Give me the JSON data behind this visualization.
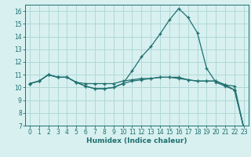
{
  "xlabel": "Humidex (Indice chaleur)",
  "x": [
    0,
    1,
    2,
    3,
    4,
    5,
    6,
    7,
    8,
    9,
    10,
    11,
    12,
    13,
    14,
    15,
    16,
    17,
    18,
    19,
    20,
    21,
    22,
    23
  ],
  "line1": [
    10.3,
    10.5,
    11.0,
    10.8,
    10.8,
    10.4,
    10.1,
    9.9,
    9.9,
    10.0,
    10.3,
    11.3,
    12.4,
    13.2,
    14.2,
    15.3,
    16.2,
    15.5,
    14.3,
    11.5,
    10.4,
    10.1,
    9.8,
    6.8
  ],
  "line2": [
    10.3,
    10.5,
    11.0,
    10.8,
    10.8,
    10.4,
    10.3,
    10.3,
    10.3,
    10.3,
    10.5,
    10.6,
    10.7,
    10.7,
    10.8,
    10.8,
    10.8,
    10.6,
    10.5,
    10.5,
    10.5,
    10.2,
    10.1,
    6.8
  ],
  "line3": [
    10.3,
    10.5,
    11.0,
    10.8,
    10.8,
    10.4,
    10.1,
    9.9,
    9.9,
    10.0,
    10.3,
    10.5,
    10.6,
    10.7,
    10.8,
    10.8,
    10.7,
    10.6,
    10.5,
    10.5,
    10.5,
    10.2,
    9.8,
    6.8
  ],
  "bg_color": "#d8f0f0",
  "grid_color": "#b0d8d8",
  "line_color": "#207070",
  "xlim": [
    -0.5,
    23.5
  ],
  "ylim": [
    7,
    16.5
  ],
  "yticks": [
    7,
    8,
    9,
    10,
    11,
    12,
    13,
    14,
    15,
    16
  ]
}
